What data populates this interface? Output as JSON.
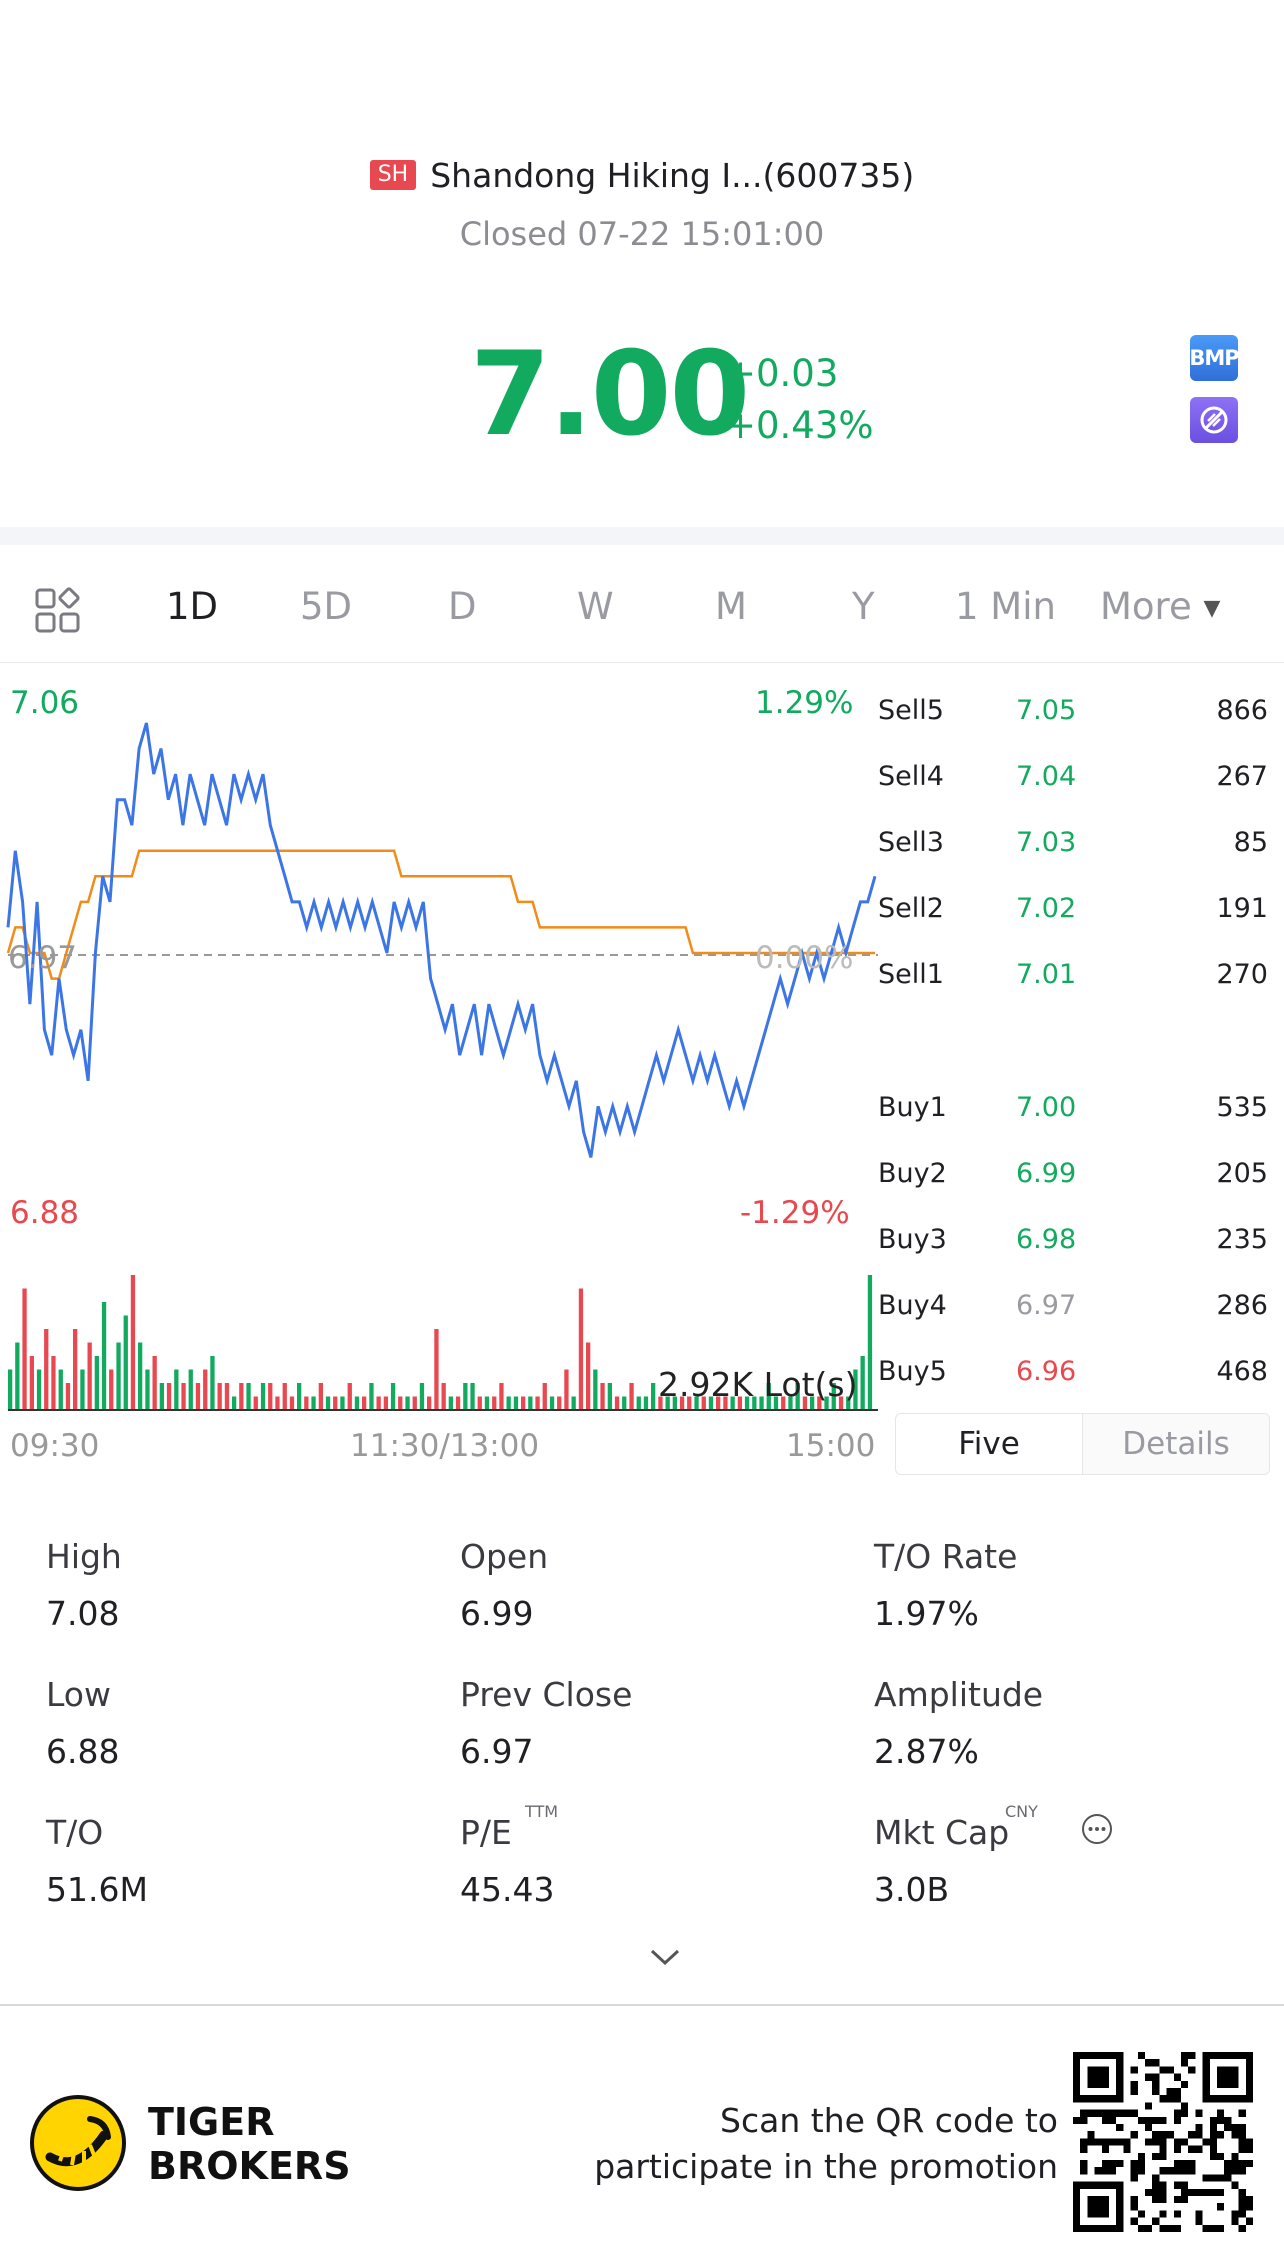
{
  "header": {
    "exchange_badge": "SH",
    "title": "Shandong Hiking I...(600735)",
    "status": "Closed 07-22 15:01:00"
  },
  "quote": {
    "price": "7.00",
    "change": "+0.03",
    "change_pct": "+0.43%",
    "bmp_label": "BMP",
    "up_color": "#12aa5f",
    "down_color": "#e8484f"
  },
  "tabs": [
    "1D",
    "5D",
    "D",
    "W",
    "M",
    "Y",
    "1 Min",
    "More"
  ],
  "active_tab": "1D",
  "chart": {
    "high_price": "7.06",
    "high_pct": "1.29%",
    "low_price": "6.88",
    "low_pct": "-1.29%",
    "prev_close": "6.97",
    "zero_pct": "0.00%",
    "volume_label": "2.92K Lot(s)",
    "time_labels": [
      "09:30",
      "11:30/13:00",
      "15:00"
    ]
  },
  "chart_data": {
    "type": "line",
    "x_label": "",
    "y_label": "",
    "ylim": [
      6.88,
      7.06
    ],
    "prev_close": 6.97,
    "series": [
      {
        "values": [
          6.98,
          7.01,
          6.99,
          6.95,
          6.99,
          6.94,
          6.93,
          6.96,
          6.94,
          6.93,
          6.94,
          6.92,
          6.97,
          7.0,
          6.99,
          7.03,
          7.03,
          7.02,
          7.05,
          7.06,
          7.04,
          7.05,
          7.03,
          7.04,
          7.02,
          7.04,
          7.03,
          7.02,
          7.04,
          7.03,
          7.02,
          7.04,
          7.03,
          7.04,
          7.03,
          7.04,
          7.02,
          7.01,
          7.0,
          6.99,
          6.99,
          6.98,
          6.99,
          6.98,
          6.99,
          6.98,
          6.99,
          6.98,
          6.99,
          6.98,
          6.99,
          6.98,
          6.97,
          6.99,
          6.98,
          6.99,
          6.98,
          6.99,
          6.96,
          6.95,
          6.94,
          6.95,
          6.93,
          6.94,
          6.95,
          6.93,
          6.95,
          6.94,
          6.93,
          6.94,
          6.95,
          6.94,
          6.95,
          6.93,
          6.92,
          6.93,
          6.92,
          6.91,
          6.92,
          6.9,
          6.89,
          6.91,
          6.9,
          6.91,
          6.9,
          6.91,
          6.9,
          6.91,
          6.92,
          6.93,
          6.92,
          6.93,
          6.94,
          6.93,
          6.92,
          6.93,
          6.92,
          6.93,
          6.92,
          6.91,
          6.92,
          6.91,
          6.92,
          6.93,
          6.94,
          6.95,
          6.96,
          6.95,
          6.96,
          6.97,
          6.96,
          6.97,
          6.96,
          6.97,
          6.98,
          6.97,
          6.98,
          6.99,
          6.99,
          7.0
        ]
      },
      {
        "values": [
          6.97,
          6.98,
          6.98,
          6.97,
          6.97,
          6.97,
          6.96,
          6.96,
          6.97,
          6.98,
          6.99,
          6.99,
          7.0,
          7.0,
          7.0,
          7.0,
          7.0,
          7.0,
          7.01,
          7.01,
          7.01,
          7.01,
          7.01,
          7.01,
          7.01,
          7.01,
          7.01,
          7.01,
          7.01,
          7.01,
          7.01,
          7.01,
          7.01,
          7.01,
          7.01,
          7.01,
          7.01,
          7.01,
          7.01,
          7.01,
          7.01,
          7.01,
          7.01,
          7.01,
          7.01,
          7.01,
          7.01,
          7.01,
          7.01,
          7.01,
          7.01,
          7.01,
          7.01,
          7.01,
          7.0,
          7.0,
          7.0,
          7.0,
          7.0,
          7.0,
          7.0,
          7.0,
          7.0,
          7.0,
          7.0,
          7.0,
          7.0,
          7.0,
          7.0,
          7.0,
          6.99,
          6.99,
          6.99,
          6.98,
          6.98,
          6.98,
          6.98,
          6.98,
          6.98,
          6.98,
          6.98,
          6.98,
          6.98,
          6.98,
          6.98,
          6.98,
          6.98,
          6.98,
          6.98,
          6.98,
          6.98,
          6.98,
          6.98,
          6.98,
          6.97,
          6.97,
          6.97,
          6.97,
          6.97,
          6.97,
          6.97,
          6.97,
          6.97,
          6.97,
          6.97,
          6.97,
          6.97,
          6.97,
          6.97,
          6.97,
          6.97,
          6.97,
          6.97,
          6.97,
          6.97,
          6.97,
          6.97,
          6.97,
          6.97,
          6.97
        ]
      }
    ],
    "volume": [
      0.3,
      0.5,
      0.9,
      0.4,
      0.3,
      0.6,
      0.4,
      0.3,
      0.2,
      0.6,
      0.3,
      0.5,
      0.4,
      0.8,
      0.3,
      0.5,
      0.7,
      1.0,
      0.5,
      0.3,
      0.4,
      0.2,
      0.2,
      0.3,
      0.2,
      0.3,
      0.2,
      0.3,
      0.4,
      0.2,
      0.2,
      0.1,
      0.2,
      0.2,
      0.1,
      0.2,
      0.2,
      0.1,
      0.2,
      0.1,
      0.2,
      0.1,
      0.1,
      0.2,
      0.1,
      0.1,
      0.1,
      0.2,
      0.1,
      0.1,
      0.2,
      0.1,
      0.1,
      0.2,
      0.1,
      0.1,
      0.1,
      0.2,
      0.1,
      0.6,
      0.2,
      0.1,
      0.1,
      0.2,
      0.2,
      0.1,
      0.1,
      0.1,
      0.2,
      0.1,
      0.1,
      0.1,
      0.1,
      0.1,
      0.2,
      0.1,
      0.1,
      0.3,
      0.1,
      0.9,
      0.5,
      0.3,
      0.2,
      0.2,
      0.1,
      0.1,
      0.2,
      0.1,
      0.1,
      0.2,
      0.1,
      0.1,
      0.1,
      0.1,
      0.1,
      0.1,
      0.1,
      0.1,
      0.1,
      0.1,
      0.1,
      0.1,
      0.1,
      0.1,
      0.1,
      0.2,
      0.1,
      0.1,
      0.1,
      0.2,
      0.1,
      0.1,
      0.1,
      0.1,
      0.2,
      0.1,
      0.1,
      0.3,
      0.4,
      1.0
    ],
    "volume_colors_hint": "green=up, red=down"
  },
  "order_book": {
    "sell": [
      {
        "label": "Sell5",
        "price": "7.05",
        "vol": "866"
      },
      {
        "label": "Sell4",
        "price": "7.04",
        "vol": "267"
      },
      {
        "label": "Sell3",
        "price": "7.03",
        "vol": "85"
      },
      {
        "label": "Sell2",
        "price": "7.02",
        "vol": "191"
      },
      {
        "label": "Sell1",
        "price": "7.01",
        "vol": "270"
      }
    ],
    "buy": [
      {
        "label": "Buy1",
        "price": "7.00",
        "vol": "535"
      },
      {
        "label": "Buy2",
        "price": "6.99",
        "vol": "205"
      },
      {
        "label": "Buy3",
        "price": "6.98",
        "vol": "235"
      },
      {
        "label": "Buy4",
        "price": "6.97",
        "vol": "286"
      },
      {
        "label": "Buy5",
        "price": "6.96",
        "vol": "468"
      }
    ],
    "tabs": [
      "Five",
      "Details"
    ]
  },
  "stats": {
    "high_label": "High",
    "high": "7.08",
    "open_label": "Open",
    "open": "6.99",
    "to_rate_label": "T/O Rate",
    "to_rate": "1.97%",
    "low_label": "Low",
    "low": "6.88",
    "prev_close_label": "Prev Close",
    "prev_close": "6.97",
    "amplitude_label": "Amplitude",
    "amplitude": "2.87%",
    "to_label": "T/O",
    "to": "51.6M",
    "pe_label": "P/E",
    "pe_sup": "TTM",
    "pe": "45.43",
    "mkt_cap_label": "Mkt Cap",
    "mkt_cap_sup": "CNY",
    "mkt_cap": "3.0B"
  },
  "footer": {
    "brand_line1": "TIGER",
    "brand_line2": "BROKERS",
    "promo_line1": "Scan the QR code to",
    "promo_line2": "participate in the promotion"
  }
}
